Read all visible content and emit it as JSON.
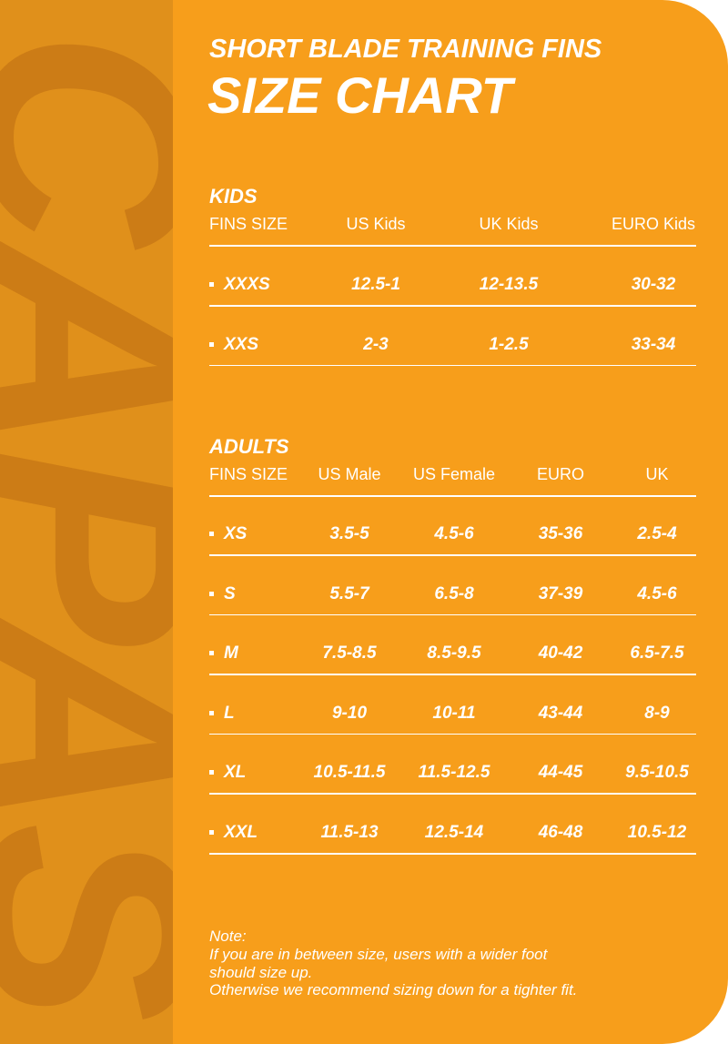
{
  "brand": "CAPAS",
  "header": {
    "subtitle": "SHORT BLADE TRAINING FINS",
    "title": "SIZE CHART"
  },
  "kids": {
    "title": "KIDS",
    "columns": [
      "FINS SIZE",
      "US Kids",
      "UK Kids",
      "EURO Kids"
    ],
    "rows": [
      [
        "XXXS",
        "12.5-1",
        "12-13.5",
        "30-32"
      ],
      [
        "XXS",
        "2-3",
        "1-2.5",
        "33-34"
      ]
    ]
  },
  "adults": {
    "title": "ADULTS",
    "columns": [
      "FINS SIZE",
      "US Male",
      "US Female",
      "EURO",
      "UK"
    ],
    "rows": [
      [
        "XS",
        "3.5-5",
        "4.5-6",
        "35-36",
        "2.5-4"
      ],
      [
        "S",
        "5.5-7",
        "6.5-8",
        "37-39",
        "4.5-6"
      ],
      [
        "M",
        "7.5-8.5",
        "8.5-9.5",
        "40-42",
        "6.5-7.5"
      ],
      [
        "L",
        "9-10",
        "10-11",
        "43-44",
        "8-9"
      ],
      [
        "XL",
        "10.5-11.5",
        "11.5-12.5",
        "44-45",
        "9.5-10.5"
      ],
      [
        "XXL",
        "11.5-13",
        "12.5-14",
        "46-48",
        "10.5-12"
      ]
    ]
  },
  "note": {
    "label": "Note:",
    "lines": [
      "If you are in between size, users with a wider foot",
      "should size up.",
      "Otherwise we recommend sizing down for a tighter fit."
    ]
  }
}
